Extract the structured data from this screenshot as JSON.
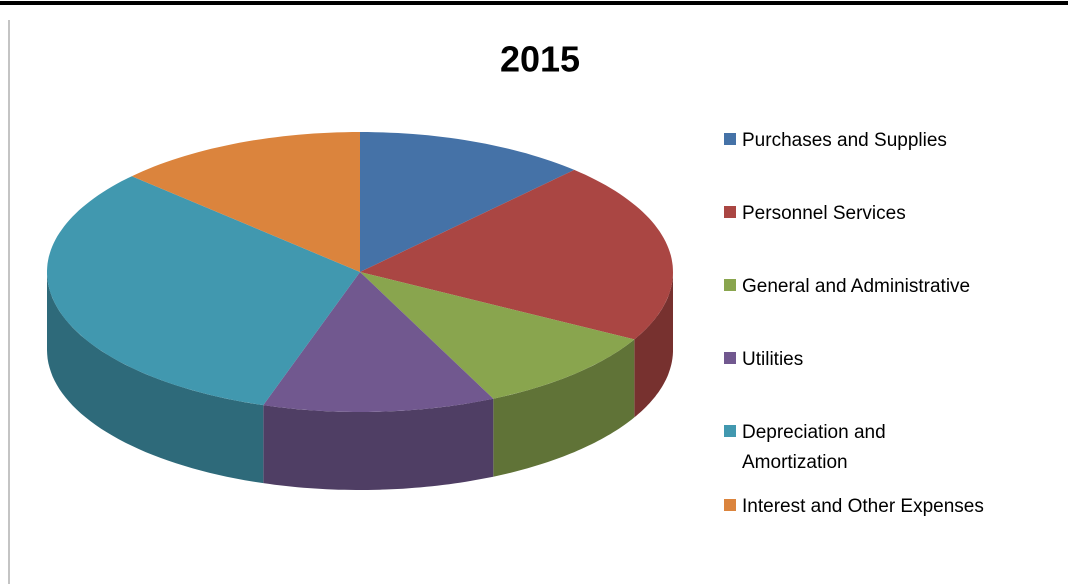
{
  "chart_data": {
    "type": "pie3d",
    "title": "2015",
    "categories": [
      "Purchases and Supplies",
      "Personnel Services",
      "General and Administrative",
      "Utilities",
      "Depreciation and Amortization",
      "Interest and Other Expenses"
    ],
    "values": [
      12,
      21,
      10,
      12,
      32,
      13
    ],
    "colors": [
      "#4572a7",
      "#aa4643",
      "#89a54e",
      "#71588f",
      "#4198af",
      "#db843d"
    ],
    "legend": "right"
  }
}
